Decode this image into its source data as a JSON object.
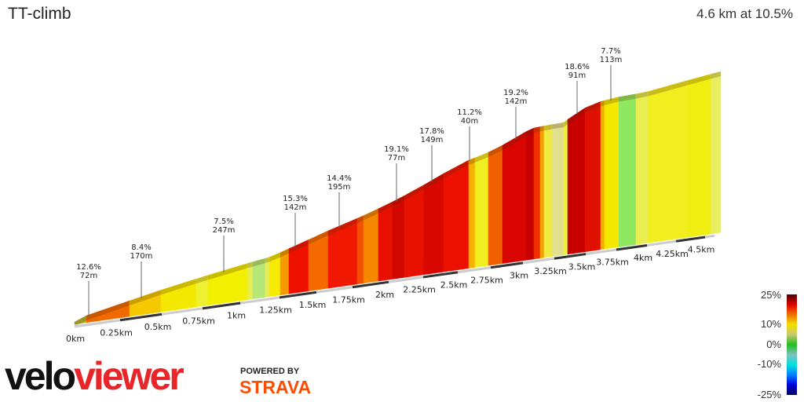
{
  "header": {
    "title": "TT-climb",
    "summary": "4.6 km at 10.5%"
  },
  "chart_data": {
    "type": "area",
    "title": "TT-climb",
    "subtitle": "4.6 km at 10.5%",
    "x_ticks": [
      "0km",
      "0.25km",
      "0.5km",
      "0.75km",
      "1km",
      "1.25km",
      "1.5km",
      "1.75km",
      "2km",
      "2.25km",
      "2.5km",
      "2.75km",
      "3km",
      "3.25km",
      "3.5km",
      "3.75km",
      "4km",
      "4.25km",
      "4.5km"
    ],
    "xlim": [
      0,
      4.6
    ],
    "annotations": [
      {
        "km": 0.1,
        "grade": "12.6%",
        "length": "72m"
      },
      {
        "km": 0.45,
        "grade": "8.4%",
        "length": "170m"
      },
      {
        "km": 0.95,
        "grade": "7.5%",
        "length": "247m"
      },
      {
        "km": 1.35,
        "grade": "15.3%",
        "length": "142m"
      },
      {
        "km": 1.6,
        "grade": "14.4%",
        "length": "195m"
      },
      {
        "km": 1.95,
        "grade": "19.1%",
        "length": "77m"
      },
      {
        "km": 2.2,
        "grade": "17.8%",
        "length": "149m"
      },
      {
        "km": 2.55,
        "grade": "11.2%",
        "length": "40m"
      },
      {
        "km": 2.95,
        "grade": "19.2%",
        "length": "142m"
      },
      {
        "km": 3.45,
        "grade": "18.6%",
        "length": "91m"
      },
      {
        "km": 3.7,
        "grade": "7.7%",
        "length": "113m"
      }
    ],
    "legend": {
      "labels": [
        "25%",
        "10%",
        "0%",
        "-10%",
        "-25%"
      ],
      "colors": [
        "#4a0000",
        "#e00000",
        "#f07000",
        "#f0e000",
        "#c8c870",
        "#20c020",
        "#80c0c0",
        "#00e0e0",
        "#0080ff",
        "#0000e0",
        "#000050"
      ]
    },
    "segment_colors": [
      "#b8b830",
      "#f06a00",
      "#f5c800",
      "#f5e800",
      "#eef030",
      "#f2ef00",
      "#e8ee50",
      "#b5e878",
      "#e5ee5a",
      "#f5ea00",
      "#f59a00",
      "#f01000",
      "#f56a00",
      "#f01800",
      "#f55000",
      "#f58800",
      "#e81000",
      "#d00800",
      "#e81000",
      "#d80800",
      "#ec1000",
      "#f5b000",
      "#f0ee20",
      "#f06000",
      "#d80500",
      "#c80000",
      "#f03000",
      "#f5a000",
      "#eeea40",
      "#e0e090",
      "#f0f040",
      "#c80000",
      "#e01000",
      "#f5b000",
      "#f5e800",
      "#90e860",
      "#e8ee50",
      "#f2ee20",
      "#f0ee10",
      "#e8ee60"
    ]
  },
  "branding": {
    "velo": "velo",
    "viewer": "viewer",
    "powered": "POWERED BY",
    "strava": "STRAVA"
  }
}
